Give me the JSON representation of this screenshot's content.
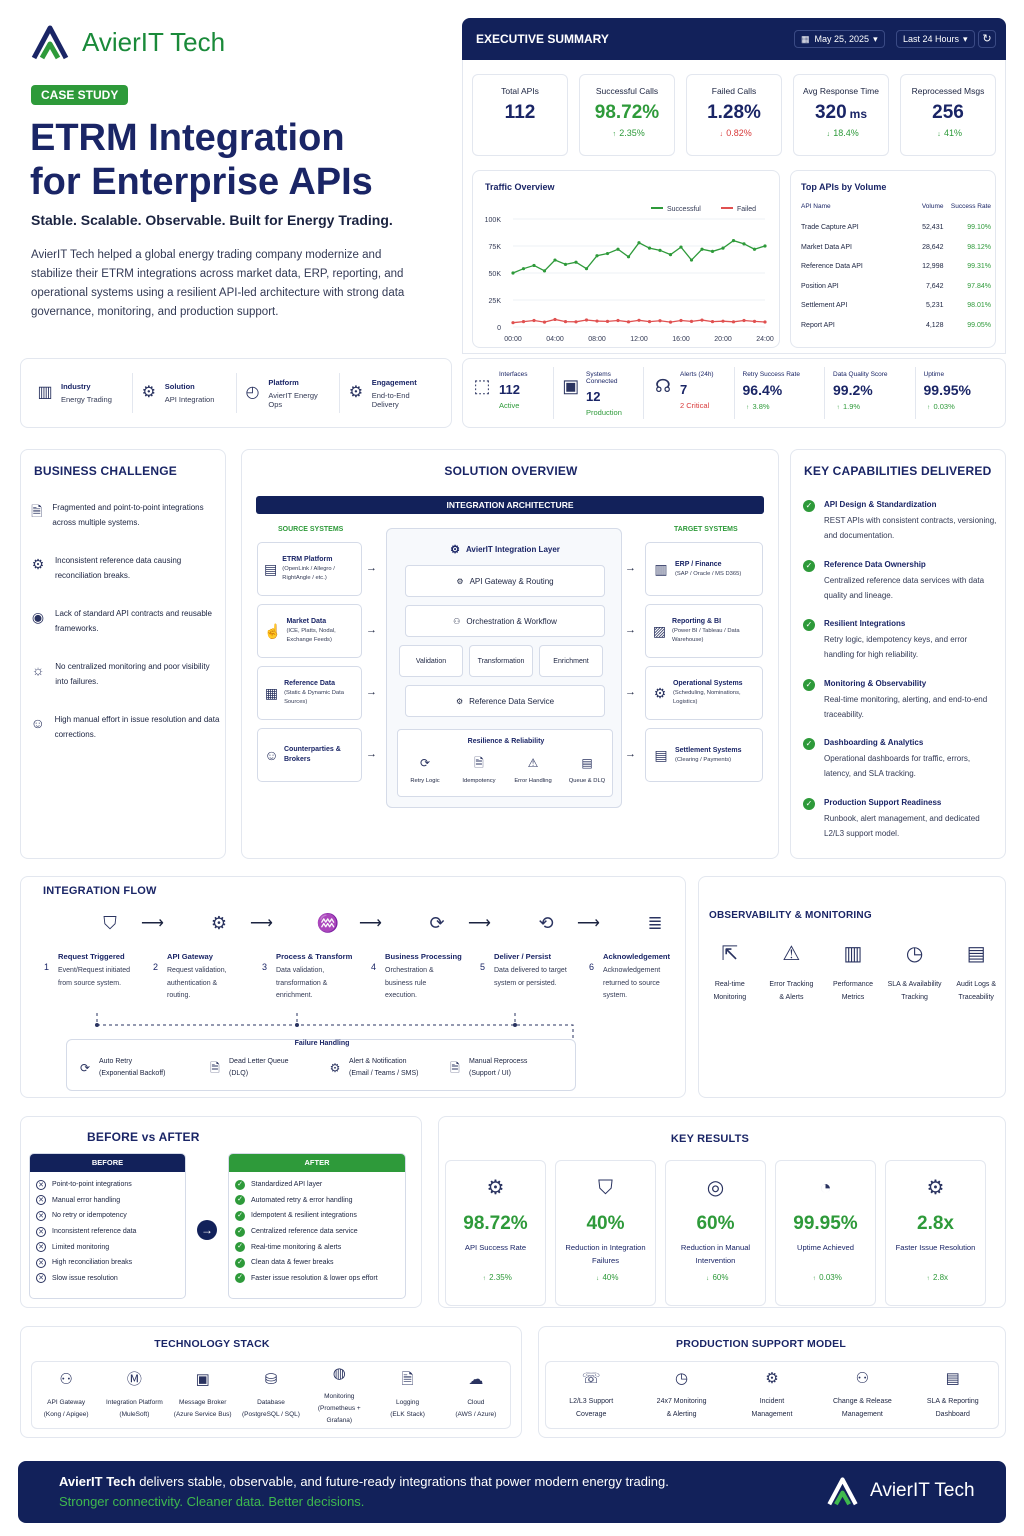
{
  "brand": {
    "name": "AvierIT Tech"
  },
  "hero": {
    "badge": "CASE STUDY",
    "title_line1": "ETRM Integration",
    "title_line2": "for Enterprise APIs",
    "tagline": "Stable. Scalable. Observable. Built for Energy Trading.",
    "desc": "AvierIT Tech helped a global energy trading company modernize and stabilize their ETRM integrations across market data, ERP, reporting, and operational systems using a resilient API-led architecture with strong data governance, monitoring, and production support."
  },
  "facts": [
    {
      "label": "Industry",
      "value": "Energy Trading",
      "icon": "building-icon"
    },
    {
      "label": "Solution",
      "value": "API Integration",
      "icon": "gear-icon"
    },
    {
      "label": "Platform",
      "value": "AvierIT Energy Ops",
      "icon": "gauge-icon"
    },
    {
      "label": "Engagement",
      "value": "End-to-End Delivery",
      "icon": "cog-icon"
    }
  ],
  "exec": {
    "title": "EXECUTIVE SUMMARY",
    "date": "May 25, 2025",
    "range": "Last 24 Hours",
    "kpis": [
      {
        "label": "Total APIs",
        "value": "112",
        "unit": "",
        "delta": "",
        "dir": ""
      },
      {
        "label": "Successful Calls",
        "value": "98.72%",
        "unit": "",
        "delta": "2.35%",
        "dir": "up"
      },
      {
        "label": "Failed Calls",
        "value": "1.28%",
        "unit": "",
        "delta": "0.82%",
        "dir": "down"
      },
      {
        "label": "Avg Response Time",
        "value": "320",
        "unit": "ms",
        "delta": "18.4%",
        "dir": "down"
      },
      {
        "label": "Reprocessed Msgs",
        "value": "256",
        "unit": "",
        "delta": "41%",
        "dir": "down"
      }
    ],
    "top_apis": {
      "title": "Top APIs by Volume",
      "headers": [
        "API Name",
        "Volume",
        "Success Rate"
      ],
      "rows": [
        [
          "Trade Capture API",
          "52,431",
          "99.10%"
        ],
        [
          "Market Data API",
          "28,642",
          "98.12%"
        ],
        [
          "Reference Data API",
          "12,998",
          "99.31%"
        ],
        [
          "Position API",
          "7,642",
          "97.84%"
        ],
        [
          "Settlement API",
          "5,231",
          "98.01%"
        ],
        [
          "Report API",
          "4,128",
          "99.05%"
        ]
      ]
    },
    "stats": [
      {
        "label": "Interfaces",
        "value": "112",
        "sub": "Active",
        "subc": "green"
      },
      {
        "label": "Systems Connected",
        "value": "12",
        "sub": "Production",
        "subc": "green"
      },
      {
        "label": "Alerts (24h)",
        "value": "7",
        "sub": "2 Critical",
        "subc": "red"
      },
      {
        "label": "Retry Success Rate",
        "value": "96.4%",
        "sub": "3.8%",
        "subc": "up"
      },
      {
        "label": "Data Quality Score",
        "value": "99.2%",
        "sub": "1.9%",
        "subc": "up"
      },
      {
        "label": "Uptime",
        "value": "99.95%",
        "sub": "0.03%",
        "subc": "up"
      }
    ]
  },
  "chart_data": {
    "type": "line",
    "title": "Traffic Overview",
    "x": [
      "00:00",
      "01:00",
      "02:00",
      "03:00",
      "04:00",
      "05:00",
      "06:00",
      "07:00",
      "08:00",
      "09:00",
      "10:00",
      "11:00",
      "12:00",
      "13:00",
      "14:00",
      "15:00",
      "16:00",
      "17:00",
      "18:00",
      "19:00",
      "20:00",
      "21:00",
      "22:00",
      "23:00",
      "24:00"
    ],
    "xticks": [
      "00:00",
      "04:00",
      "08:00",
      "12:00",
      "16:00",
      "20:00",
      "24:00"
    ],
    "yticks": [
      "0",
      "25K",
      "50K",
      "75K",
      "100K"
    ],
    "ylim": [
      0,
      100000
    ],
    "legend": "top-right",
    "series": [
      {
        "name": "Successful",
        "color": "#2e9a3a",
        "values": [
          50000,
          54000,
          57000,
          52000,
          62000,
          58000,
          60000,
          54000,
          66000,
          68000,
          72000,
          65000,
          78000,
          73000,
          71000,
          67000,
          74000,
          62000,
          72000,
          70000,
          73000,
          80000,
          77000,
          72000,
          75000
        ]
      },
      {
        "name": "Failed",
        "color": "#e05050",
        "values": [
          4000,
          5000,
          6000,
          4500,
          7000,
          5000,
          4800,
          6500,
          5500,
          5200,
          6000,
          4800,
          6200,
          5000,
          5800,
          4500,
          6000,
          5200,
          6400,
          5000,
          5400,
          4800,
          6000,
          5200,
          4600
        ]
      }
    ]
  },
  "challenge": {
    "title": "BUSINESS CHALLENGE",
    "items": [
      "Fragmented and point-to-point integrations across multiple systems.",
      "Inconsistent reference data causing reconciliation breaks.",
      "Lack of standard API contracts and reusable frameworks.",
      "No centralized monitoring and poor visibility into failures.",
      "High manual effort in issue resolution and data corrections."
    ]
  },
  "solution": {
    "title": "SOLUTION OVERVIEW",
    "arch_title": "INTEGRATION ARCHITECTURE",
    "source_title": "SOURCE SYSTEMS",
    "target_title": "TARGET SYSTEMS",
    "sources": [
      {
        "name": "ETRM Platform",
        "sub": "(OpenLink / Allegro / RightAngle / etc.)"
      },
      {
        "name": "Market Data",
        "sub": "(ICE, Platts, Nodal, Exchange Feeds)"
      },
      {
        "name": "Reference Data",
        "sub": "(Static & Dynamic Data Sources)"
      },
      {
        "name": "Counterparties & Brokers",
        "sub": ""
      }
    ],
    "targets": [
      {
        "name": "ERP / Finance",
        "sub": "(SAP / Oracle / MS D365)"
      },
      {
        "name": "Reporting & BI",
        "sub": "(Power BI / Tableau / Data Warehouse)"
      },
      {
        "name": "Operational Systems",
        "sub": "(Scheduling, Nominations, Logistics)"
      },
      {
        "name": "Settlement Systems",
        "sub": "(Clearing / Payments)"
      }
    ],
    "layer_title": "AvierIT Integration Layer",
    "gateway": "API Gateway & Routing",
    "orch": "Orchestration & Workflow",
    "steps": [
      "Validation",
      "Transformation",
      "Enrichment"
    ],
    "refsvc": "Reference Data Service",
    "res_title": "Resilience & Reliability",
    "res": [
      "Retry Logic",
      "Idempotency",
      "Error Handling",
      "Queue & DLQ"
    ]
  },
  "capabilities": {
    "title": "KEY CAPABILITIES DELIVERED",
    "items": [
      {
        "t": "API Design & Standardization",
        "d": "REST APIs with consistent contracts, versioning, and documentation."
      },
      {
        "t": "Reference Data Ownership",
        "d": "Centralized reference data services with data quality and lineage."
      },
      {
        "t": "Resilient Integrations",
        "d": "Retry logic, idempotency keys, and error handling for high reliability."
      },
      {
        "t": "Monitoring & Observability",
        "d": "Real-time monitoring, alerting, and end-to-end traceability."
      },
      {
        "t": "Dashboarding & Analytics",
        "d": "Operational dashboards for traffic, errors, latency, and SLA tracking."
      },
      {
        "t": "Production Support Readiness",
        "d": "Runbook, alert management, and dedicated L2/L3 support model."
      }
    ]
  },
  "flow": {
    "title": "INTEGRATION FLOW",
    "steps": [
      {
        "n": "1",
        "t": "Request Triggered",
        "d": "Event/Request initiated from source system."
      },
      {
        "n": "2",
        "t": "API Gateway",
        "d": "Request validation, authentication & routing."
      },
      {
        "n": "3",
        "t": "Process & Transform",
        "d": "Data validation, transformation & enrichment."
      },
      {
        "n": "4",
        "t": "Business Processing",
        "d": "Orchestration & business rule execution."
      },
      {
        "n": "5",
        "t": "Deliver / Persist",
        "d": "Data delivered to target system or persisted."
      },
      {
        "n": "6",
        "t": "Acknowledgement",
        "d": "Acknowledgement returned to source system."
      }
    ],
    "fail_title": "Failure Handling",
    "fail": [
      {
        "t": "Auto Retry",
        "s": "(Exponential Backoff)"
      },
      {
        "t": "Dead Letter Queue",
        "s": "(DLQ)"
      },
      {
        "t": "Alert & Notification",
        "s": "(Email / Teams / SMS)"
      },
      {
        "t": "Manual Reprocess",
        "s": "(Support / UI)"
      }
    ]
  },
  "observ": {
    "title": "OBSERVABILITY & MONITORING",
    "items": [
      {
        "t": "Real-time",
        "s": "Monitoring"
      },
      {
        "t": "Error Tracking",
        "s": "& Alerts"
      },
      {
        "t": "Performance",
        "s": "Metrics"
      },
      {
        "t": "SLA & Availability",
        "s": "Tracking"
      },
      {
        "t": "Audit Logs &",
        "s": "Traceability"
      }
    ]
  },
  "before_after": {
    "title": "BEFORE vs AFTER",
    "before_title": "BEFORE",
    "after_title": "AFTER",
    "before": [
      "Point-to-point integrations",
      "Manual error handling",
      "No retry or idempotency",
      "Inconsistent reference data",
      "Limited monitoring",
      "High reconciliation breaks",
      "Slow issue resolution"
    ],
    "after": [
      "Standardized API layer",
      "Automated retry & error handling",
      "Idempotent & resilient integrations",
      "Centralized reference data service",
      "Real-time monitoring & alerts",
      "Clean data & fewer breaks",
      "Faster issue resolution & lower ops effort"
    ]
  },
  "results": {
    "title": "KEY RESULTS",
    "items": [
      {
        "v": "98.72%",
        "l": "API Success Rate",
        "d": "2.35%",
        "dir": "up"
      },
      {
        "v": "40%",
        "l": "Reduction in Integration Failures",
        "d": "40%",
        "dir": "down"
      },
      {
        "v": "60%",
        "l": "Reduction in Manual Intervention",
        "d": "60%",
        "dir": "down"
      },
      {
        "v": "99.95%",
        "l": "Uptime Achieved",
        "d": "0.03%",
        "dir": "up"
      },
      {
        "v": "2.8x",
        "l": "Faster Issue Resolution",
        "d": "2.8x",
        "dir": "up"
      }
    ]
  },
  "tech": {
    "title": "TECHNOLOGY STACK",
    "items": [
      {
        "t": "API Gateway",
        "s": "(Kong / Apigee)"
      },
      {
        "t": "Integration Platform",
        "s": "(MuleSoft)"
      },
      {
        "t": "Message Broker",
        "s": "(Azure Service Bus)"
      },
      {
        "t": "Database",
        "s": "(PostgreSQL / SQL)"
      },
      {
        "t": "Monitoring",
        "s": "(Prometheus + Grafana)"
      },
      {
        "t": "Logging",
        "s": "(ELK Stack)"
      },
      {
        "t": "Cloud",
        "s": "(AWS / Azure)"
      }
    ]
  },
  "support": {
    "title": "PRODUCTION SUPPORT MODEL",
    "items": [
      {
        "t": "L2/L3 Support",
        "s": "Coverage"
      },
      {
        "t": "24x7 Monitoring",
        "s": "& Alerting"
      },
      {
        "t": "Incident",
        "s": "Management"
      },
      {
        "t": "Change & Release",
        "s": "Management"
      },
      {
        "t": "SLA & Reporting",
        "s": "Dashboard"
      }
    ]
  },
  "footer": {
    "line1_brand": "AvierIT Tech",
    "line1_rest": " delivers stable, observable, and future-ready integrations that power modern energy trading.",
    "line2": "Stronger connectivity. Cleaner data. Better decisions.",
    "brand": "AvierIT Tech"
  }
}
